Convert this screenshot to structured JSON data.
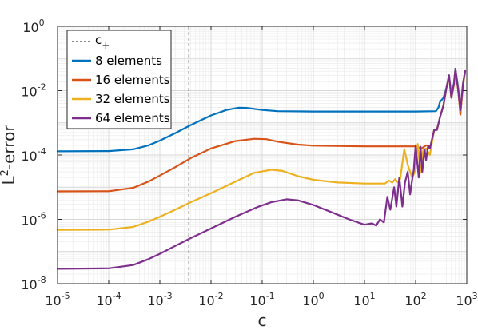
{
  "chart_data": {
    "type": "line",
    "xlabel": "c",
    "ylabel_base": "L",
    "ylabel_sup": "2",
    "ylabel_rest": "-error",
    "x_scale": "log",
    "y_scale": "log",
    "xlim": [
      1e-05,
      1000
    ],
    "ylim": [
      1e-08,
      1
    ],
    "grid": "major and minor (light gray)",
    "legend_position": "top-left",
    "x_ticks": [
      {
        "value": 1e-05,
        "base": "10",
        "exp": "-5"
      },
      {
        "value": 0.0001,
        "base": "10",
        "exp": "-4"
      },
      {
        "value": 0.001,
        "base": "10",
        "exp": "-3"
      },
      {
        "value": 0.01,
        "base": "10",
        "exp": "-2"
      },
      {
        "value": 0.1,
        "base": "10",
        "exp": "-1"
      },
      {
        "value": 1,
        "base": "10",
        "exp": "0"
      },
      {
        "value": 10,
        "base": "10",
        "exp": "1"
      },
      {
        "value": 100,
        "base": "10",
        "exp": "2"
      },
      {
        "value": 1000,
        "base": "10",
        "exp": "3"
      }
    ],
    "y_ticks": [
      {
        "value": 1e-08,
        "base": "10",
        "exp": "-8"
      },
      {
        "value": 1e-06,
        "base": "10",
        "exp": "-6"
      },
      {
        "value": 0.0001,
        "base": "10",
        "exp": "-4"
      },
      {
        "value": 0.01,
        "base": "10",
        "exp": "-2"
      },
      {
        "value": 1,
        "base": "10",
        "exp": "0"
      }
    ],
    "reference_line": {
      "name": "c",
      "sub": "+",
      "x": 0.0037,
      "color": "#404040",
      "style": "dashed"
    },
    "series": [
      {
        "name": "8 elements",
        "color": "#0072BD",
        "points": [
          [
            1e-05,
            0.00013
          ],
          [
            0.0001,
            0.000132
          ],
          [
            0.0003,
            0.00015
          ],
          [
            0.0006,
            0.0002
          ],
          [
            0.001,
            0.00028
          ],
          [
            0.002,
            0.00048
          ],
          [
            0.004,
            0.00085
          ],
          [
            0.01,
            0.0017
          ],
          [
            0.02,
            0.0025
          ],
          [
            0.035,
            0.00295
          ],
          [
            0.05,
            0.0029
          ],
          [
            0.1,
            0.0025
          ],
          [
            0.2,
            0.0023
          ],
          [
            1,
            0.00225
          ],
          [
            10,
            0.00225
          ],
          [
            100,
            0.00225
          ],
          [
            250,
            0.0023
          ],
          [
            280,
            0.003
          ],
          [
            300,
            0.0045
          ],
          [
            350,
            0.006
          ],
          [
            400,
            0.012
          ],
          [
            450,
            0.03
          ],
          [
            500,
            0.007
          ],
          [
            560,
            0.017
          ],
          [
            600,
            0.048
          ],
          [
            680,
            0.012
          ],
          [
            750,
            0.0026
          ],
          [
            850,
            0.018
          ],
          [
            930,
            0.04
          ]
        ]
      },
      {
        "name": "16 elements",
        "color": "#D95319",
        "points": [
          [
            1e-05,
            7.4e-06
          ],
          [
            0.0001,
            7.5e-06
          ],
          [
            0.0003,
            9.5e-06
          ],
          [
            0.0006,
            1.5e-05
          ],
          [
            0.001,
            2.3e-05
          ],
          [
            0.002,
            4.2e-05
          ],
          [
            0.004,
            8e-05
          ],
          [
            0.01,
            0.00016
          ],
          [
            0.03,
            0.00027
          ],
          [
            0.07,
            0.00032
          ],
          [
            0.12,
            0.00031
          ],
          [
            0.2,
            0.00026
          ],
          [
            0.5,
            0.00021
          ],
          [
            1,
            0.000195
          ],
          [
            10,
            0.000185
          ],
          [
            100,
            0.000185
          ],
          [
            130,
            0.00016
          ],
          [
            160,
            0.0002
          ],
          [
            200,
            0.00019
          ],
          [
            230,
            0.0006
          ],
          [
            260,
            0.0006
          ],
          [
            300,
            0.0015
          ],
          [
            350,
            0.0035
          ],
          [
            400,
            0.012
          ],
          [
            450,
            0.028
          ],
          [
            500,
            0.006
          ],
          [
            560,
            0.015
          ],
          [
            600,
            0.045
          ],
          [
            680,
            0.01
          ],
          [
            750,
            0.0018
          ],
          [
            850,
            0.016
          ],
          [
            930,
            0.04
          ]
        ]
      },
      {
        "name": "32 elements",
        "color": "#EDB120",
        "points": [
          [
            1e-05,
            4.7e-07
          ],
          [
            0.0001,
            4.8e-07
          ],
          [
            0.0003,
            5.8e-07
          ],
          [
            0.0006,
            8.5e-07
          ],
          [
            0.001,
            1.2e-06
          ],
          [
            0.002,
            2e-06
          ],
          [
            0.004,
            3.4e-06
          ],
          [
            0.01,
            6.5e-06
          ],
          [
            0.03,
            1.5e-05
          ],
          [
            0.07,
            2.8e-05
          ],
          [
            0.15,
            3.5e-05
          ],
          [
            0.25,
            3.2e-05
          ],
          [
            0.5,
            2.2e-05
          ],
          [
            1,
            1.7e-05
          ],
          [
            3,
            1.4e-05
          ],
          [
            10,
            1.3e-05
          ],
          [
            25,
            1.3e-05
          ],
          [
            30,
            1.6e-05
          ],
          [
            35,
            1.4e-05
          ],
          [
            40,
            1.8e-05
          ],
          [
            45,
            1.4e-05
          ],
          [
            50,
            1.8e-05
          ],
          [
            60,
            0.00015
          ],
          [
            70,
            5e-05
          ],
          [
            85,
            2e-05
          ],
          [
            95,
            2.8e-05
          ],
          [
            110,
            0.00022
          ],
          [
            125,
            2.8e-05
          ],
          [
            140,
            0.00014
          ],
          [
            160,
            0.00016
          ],
          [
            190,
            0.0001
          ],
          [
            230,
            0.0006
          ],
          [
            260,
            0.0006
          ],
          [
            300,
            0.0015
          ],
          [
            350,
            0.0035
          ],
          [
            400,
            0.012
          ],
          [
            450,
            0.028
          ],
          [
            500,
            0.006
          ],
          [
            560,
            0.015
          ],
          [
            600,
            0.045
          ],
          [
            680,
            0.01
          ],
          [
            750,
            0.0023
          ],
          [
            850,
            0.018
          ],
          [
            930,
            0.04
          ]
        ]
      },
      {
        "name": "64 elements",
        "color": "#7E2F8E",
        "points": [
          [
            1e-05,
            2.9e-08
          ],
          [
            0.0001,
            3e-08
          ],
          [
            0.0003,
            3.8e-08
          ],
          [
            0.0006,
            5.8e-08
          ],
          [
            0.001,
            8.5e-08
          ],
          [
            0.002,
            1.5e-07
          ],
          [
            0.004,
            2.6e-07
          ],
          [
            0.01,
            5.2e-07
          ],
          [
            0.03,
            1.2e-06
          ],
          [
            0.08,
            2.4e-06
          ],
          [
            0.15,
            3.4e-06
          ],
          [
            0.3,
            4.2e-06
          ],
          [
            0.5,
            3.9e-06
          ],
          [
            1,
            2.8e-06
          ],
          [
            2,
            1.8e-06
          ],
          [
            5,
            1e-06
          ],
          [
            10,
            6.8e-07
          ],
          [
            14,
            7.5e-07
          ],
          [
            17,
            6.4e-07
          ],
          [
            20,
            1e-06
          ],
          [
            24,
            8e-07
          ],
          [
            28,
            5e-06
          ],
          [
            32,
            2e-06
          ],
          [
            38,
            1e-05
          ],
          [
            42,
            2.5e-06
          ],
          [
            48,
            2e-05
          ],
          [
            55,
            2.5e-06
          ],
          [
            62,
            1.4e-05
          ],
          [
            70,
            3e-05
          ],
          [
            78,
            6e-06
          ],
          [
            85,
            1.6e-05
          ],
          [
            92,
            3.5e-05
          ],
          [
            100,
            0.0002
          ],
          [
            115,
            2e-05
          ],
          [
            125,
            0.00018
          ],
          [
            135,
            3e-05
          ],
          [
            150,
            0.00015
          ],
          [
            160,
            7e-05
          ],
          [
            175,
            0.00019
          ],
          [
            190,
            0.00016
          ],
          [
            230,
            0.0006
          ],
          [
            260,
            0.0006
          ],
          [
            300,
            0.0015
          ],
          [
            350,
            0.0035
          ],
          [
            400,
            0.012
          ],
          [
            450,
            0.03
          ],
          [
            500,
            0.006
          ],
          [
            560,
            0.016
          ],
          [
            600,
            0.048
          ],
          [
            680,
            0.01
          ],
          [
            750,
            0.0024
          ],
          [
            850,
            0.018
          ],
          [
            930,
            0.042
          ]
        ]
      }
    ]
  }
}
